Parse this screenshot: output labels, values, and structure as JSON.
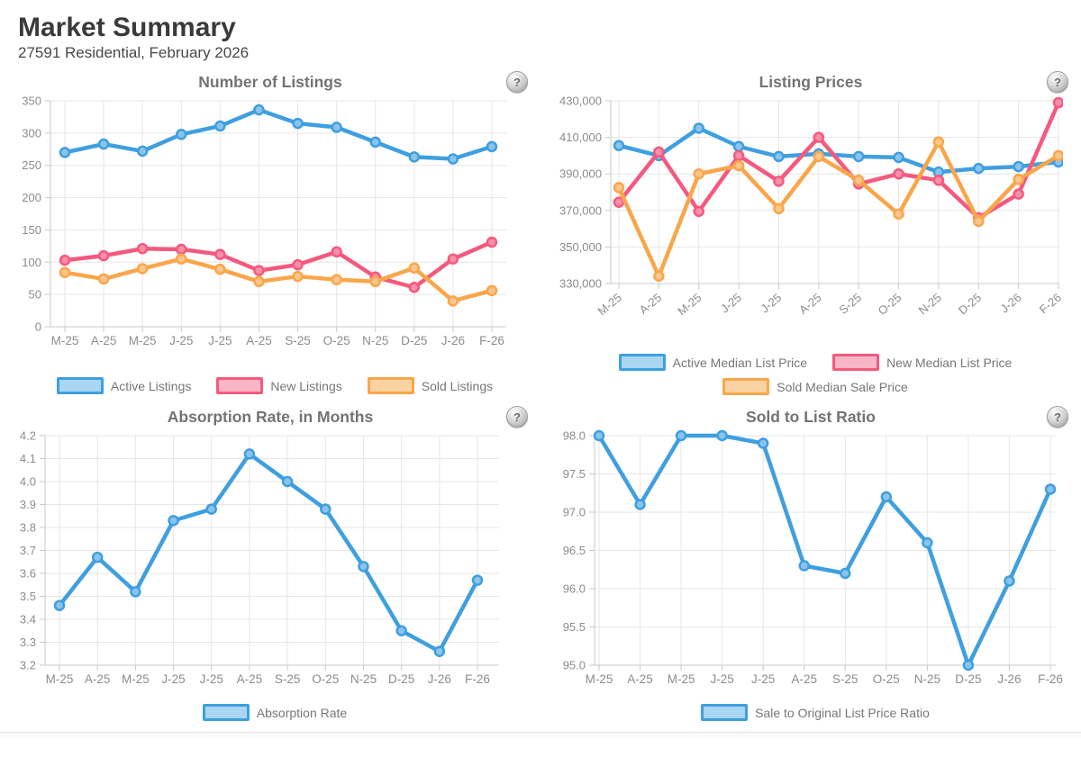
{
  "header": {
    "title": "Market Summary",
    "subtitle": "27591 Residential, February 2026"
  },
  "icons": {
    "help_glyph": "?"
  },
  "chart_data": [
    {
      "type": "line",
      "title": "Number of Listings",
      "categories": [
        "M-25",
        "A-25",
        "M-25",
        "J-25",
        "J-25",
        "A-25",
        "S-25",
        "O-25",
        "N-25",
        "D-25",
        "J-26",
        "F-26"
      ],
      "ylim": [
        0,
        350
      ],
      "y_step": 50,
      "y_format": "plain",
      "grid": true,
      "legend_position": "bottom",
      "x_labels_rotated": false,
      "series": [
        {
          "name": "Active Listings",
          "color": "#3f9fdf",
          "point_fill": "#8ac4ec",
          "swatch_fill": "#a9d6f3",
          "values": [
            270,
            283,
            272,
            298,
            311,
            336,
            315,
            309,
            286,
            263,
            260,
            279
          ]
        },
        {
          "name": "New Listings",
          "color": "#f4597e",
          "point_fill": "#f78fa8",
          "swatch_fill": "#f8b6c6",
          "values": [
            103,
            110,
            121,
            120,
            112,
            87,
            96,
            116,
            77,
            61,
            105,
            131
          ]
        },
        {
          "name": "Sold Listings",
          "color": "#f9a64a",
          "point_fill": "#fbc68d",
          "swatch_fill": "#fbd3a3",
          "values": [
            84,
            74,
            90,
            105,
            89,
            70,
            78,
            73,
            70,
            91,
            40,
            56
          ]
        }
      ]
    },
    {
      "type": "line",
      "title": "Listing Prices",
      "categories": [
        "M-25",
        "A-25",
        "M-25",
        "J-25",
        "J-25",
        "A-25",
        "S-25",
        "O-25",
        "N-25",
        "D-25",
        "J-26",
        "F-26"
      ],
      "ylim": [
        330000,
        430000
      ],
      "y_step": 20000,
      "y_format": "thousands",
      "grid": true,
      "legend_position": "bottom",
      "x_labels_rotated": true,
      "series": [
        {
          "name": "Active Median List Price",
          "color": "#3f9fdf",
          "point_fill": "#8ac4ec",
          "swatch_fill": "#a9d6f3",
          "values": [
            405500,
            400000,
            415000,
            405000,
            399500,
            401000,
            399500,
            399000,
            391000,
            393000,
            394000,
            396500
          ]
        },
        {
          "name": "New Median List Price",
          "color": "#f4597e",
          "point_fill": "#f78fa8",
          "swatch_fill": "#f8b6c6",
          "values": [
            374500,
            402000,
            369500,
            400000,
            386000,
            410000,
            384500,
            390000,
            386500,
            366000,
            379000,
            429000
          ]
        },
        {
          "name": "Sold Median Sale Price",
          "color": "#f9a64a",
          "point_fill": "#fbc68d",
          "swatch_fill": "#fbd3a3",
          "values": [
            382500,
            334000,
            390000,
            394500,
            371000,
            399500,
            386500,
            368000,
            407500,
            364000,
            387000,
            400000
          ]
        }
      ]
    },
    {
      "type": "line",
      "title": "Absorption Rate, in Months",
      "categories": [
        "M-25",
        "A-25",
        "M-25",
        "J-25",
        "J-25",
        "A-25",
        "S-25",
        "O-25",
        "N-25",
        "D-25",
        "J-26",
        "F-26"
      ],
      "ylim": [
        3.2,
        4.2
      ],
      "y_step": 0.1,
      "y_format": "decimal1",
      "grid": true,
      "legend_position": "bottom",
      "x_labels_rotated": false,
      "series": [
        {
          "name": "Absorption Rate",
          "color": "#3f9fdf",
          "point_fill": "#8ac4ec",
          "swatch_fill": "#a9d6f3",
          "values": [
            3.46,
            3.67,
            3.52,
            3.83,
            3.88,
            4.12,
            4.0,
            3.88,
            3.63,
            3.35,
            3.26,
            3.57
          ]
        }
      ]
    },
    {
      "type": "line",
      "title": "Sold to List Ratio",
      "categories": [
        "M-25",
        "A-25",
        "M-25",
        "J-25",
        "J-25",
        "A-25",
        "S-25",
        "O-25",
        "N-25",
        "D-25",
        "J-26",
        "F-26"
      ],
      "ylim": [
        95.0,
        98.0
      ],
      "y_step": 0.5,
      "y_format": "decimal1",
      "grid": true,
      "legend_position": "bottom",
      "x_labels_rotated": false,
      "series": [
        {
          "name": "Sale to Original List Price Ratio",
          "color": "#3f9fdf",
          "point_fill": "#8ac4ec",
          "swatch_fill": "#a9d6f3",
          "values": [
            98.0,
            97.1,
            98.0,
            98.0,
            97.9,
            96.3,
            96.2,
            97.2,
            96.6,
            95.0,
            96.1,
            97.3
          ]
        }
      ]
    }
  ]
}
